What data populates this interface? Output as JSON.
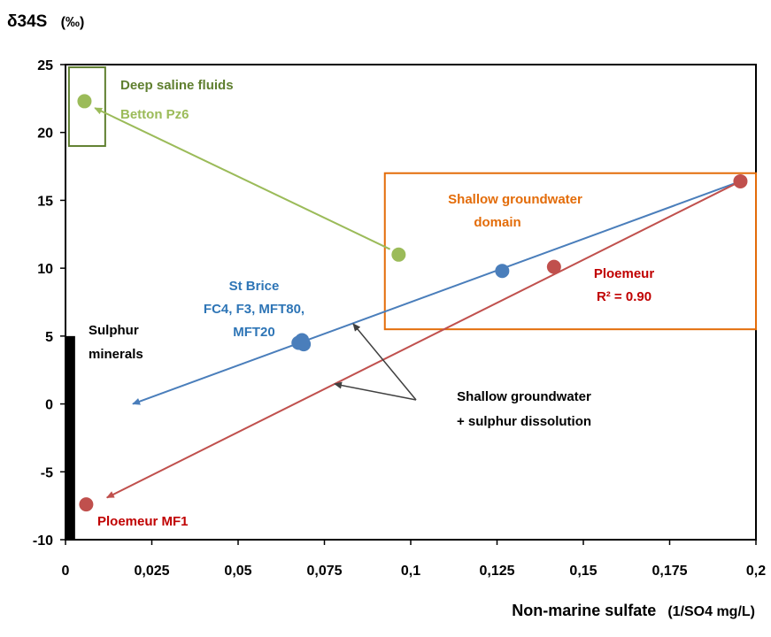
{
  "chart_data": {
    "type": "scatter",
    "ylabel_main": "δ34S",
    "ylabel_unit": "(‰)",
    "xlabel_main": "Non-marine sulfate",
    "xlabel_unit": "(1/SO4 mg/L)",
    "xlim": [
      0,
      0.2
    ],
    "ylim": [
      -10,
      25
    ],
    "x_ticks": [
      "0",
      "0,025",
      "0,05",
      "0,075",
      "0,1",
      "0,125",
      "0,15",
      "0,175",
      "0,2"
    ],
    "x_tick_values": [
      0,
      0.025,
      0.05,
      0.075,
      0.1,
      0.125,
      0.15,
      0.175,
      0.2
    ],
    "y_ticks": [
      "-10",
      "-5",
      "0",
      "5",
      "10",
      "15",
      "20",
      "25"
    ],
    "y_tick_values": [
      -10,
      -5,
      0,
      5,
      10,
      15,
      20,
      25
    ],
    "grid": false,
    "colors": {
      "green": "#9bbb59",
      "dark_green": "#5f7f2f",
      "blue": "#4a7ebb",
      "blue_label": "#2e75b6",
      "red": "#c0504d",
      "red_label": "#c00000",
      "orange": "#e36c09",
      "black": "#000000",
      "gray_arrow": "#404040"
    },
    "series": [
      {
        "color": "green",
        "points": [
          [
            0.0055,
            22.3
          ],
          [
            0.0965,
            11.0
          ]
        ]
      },
      {
        "color": "blue",
        "points": [
          [
            0.0675,
            4.5
          ],
          [
            0.0685,
            4.7
          ],
          [
            0.069,
            4.4
          ],
          [
            0.1265,
            9.8
          ]
        ]
      },
      {
        "color": "red",
        "points": [
          [
            0.006,
            -7.4
          ],
          [
            0.1415,
            10.1
          ],
          [
            0.1955,
            16.4
          ]
        ]
      }
    ],
    "lines": [
      {
        "color": "green",
        "from": [
          0.094,
          11.4
        ],
        "to": [
          0.0085,
          21.8
        ],
        "arrow": true
      },
      {
        "color": "blue",
        "from": [
          0.1955,
          16.4
        ],
        "to": [
          0.0195,
          0.0
        ],
        "arrow": true
      },
      {
        "color": "red",
        "from": [
          0.1955,
          16.4
        ],
        "to": [
          0.012,
          -6.9
        ],
        "arrow": true
      }
    ],
    "boxes": [
      {
        "color": "dark_green",
        "x0": 0.001,
        "x1": 0.0115,
        "y0": 19.0,
        "y1": 24.8
      },
      {
        "color": "orange",
        "x0": 0.0925,
        "x1": 0.2,
        "y0": 5.5,
        "y1": 17.0
      }
    ],
    "sulphur_bar": {
      "x": 0.0015,
      "y0": -10,
      "y1": 5
    },
    "annotations": [
      {
        "lines": [
          "Deep saline fluids"
        ],
        "color": "dark_green"
      },
      {
        "lines": [
          "Betton Pz6"
        ],
        "color": "green"
      },
      {
        "lines": [
          "Shallow groundwater",
          "domain"
        ],
        "color": "orange"
      },
      {
        "lines": [
          "St Brice",
          "FC4, F3, MFT80,",
          "MFT20"
        ],
        "color": "blue_label"
      },
      {
        "lines": [
          "Ploemeur",
          "R² = 0.90"
        ],
        "color": "red_label"
      },
      {
        "lines": [
          "Sulphur",
          "minerals"
        ],
        "color": "black"
      },
      {
        "lines": [
          "Shallow groundwater",
          "+ sulphur dissolution"
        ],
        "color": "black"
      },
      {
        "lines": [
          "Ploemeur MF1"
        ],
        "color": "red_label"
      }
    ]
  }
}
